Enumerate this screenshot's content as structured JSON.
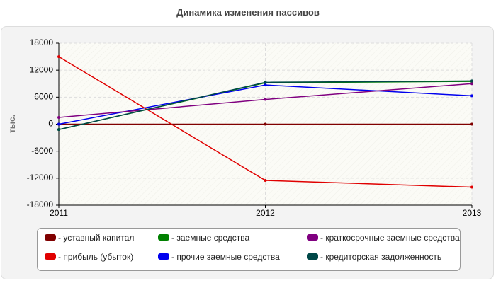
{
  "chart_data": {
    "type": "line",
    "title": "Динамика изменения пассивов",
    "y_label": "тыс.",
    "x": [
      2011,
      2012,
      2013
    ],
    "xlim": [
      2011,
      2013
    ],
    "xticks": [
      2011,
      2012,
      2013
    ],
    "ylim": [
      -18000,
      18000
    ],
    "yticks": [
      -18000,
      -12000,
      -6000,
      0,
      6000,
      12000,
      18000
    ],
    "grid": true,
    "series": [
      {
        "name": "уставный капитал",
        "color": "#800000",
        "values": [
          0,
          0,
          0
        ]
      },
      {
        "name": "прибыль (убыток)",
        "color": "#e00000",
        "values": [
          15000,
          -12500,
          -14000
        ]
      },
      {
        "name": "заемные средства",
        "color": "#008000",
        "values": [
          -1200,
          9200,
          9500
        ]
      },
      {
        "name": "прочие заемные средства",
        "color": "#0000ee",
        "values": [
          0,
          8700,
          6300
        ]
      },
      {
        "name": "краткосрочные заемные средства",
        "color": "#800080",
        "values": [
          1500,
          5500,
          9000
        ]
      },
      {
        "name": "кредиторская задолженность",
        "color": "#004848",
        "values": [
          -1200,
          9300,
          9600
        ]
      }
    ]
  }
}
